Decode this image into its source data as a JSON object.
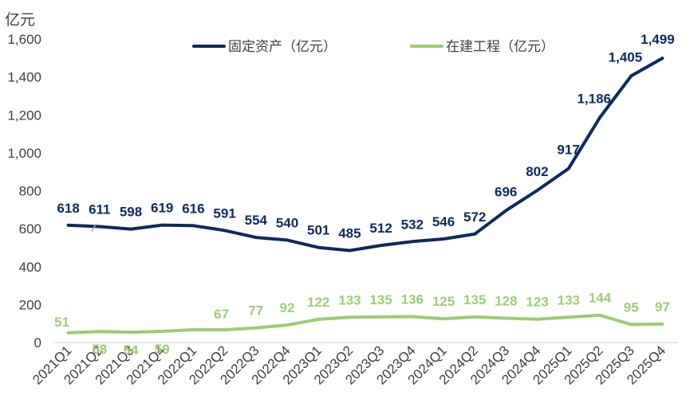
{
  "chart_data": {
    "type": "line",
    "unit_label": "亿元",
    "categories": [
      "2021Q1",
      "2021Q2",
      "2021Q3",
      "2021Q4",
      "2022Q1",
      "2022Q2",
      "2022Q3",
      "2022Q4",
      "2023Q1",
      "2023Q2",
      "2023Q3",
      "2023Q4",
      "2024Q1",
      "2024Q2",
      "2024Q3",
      "2024Q4",
      "2025Q1",
      "2025Q2",
      "2025Q3",
      "2025Q4"
    ],
    "y_ticks": [
      "0",
      "200",
      "400",
      "600",
      "800",
      "1,000",
      "1,200",
      "1,400",
      "1,600"
    ],
    "ylim": [
      0,
      1600
    ],
    "grid": false,
    "legend_position": "top",
    "series": [
      {
        "name": "固定资产（亿元）",
        "color": "#0e2a5c",
        "values": [
          618,
          611,
          598,
          619,
          616,
          591,
          554,
          540,
          501,
          485,
          512,
          532,
          546,
          572,
          696,
          802,
          917,
          1186,
          1405,
          1499
        ],
        "labels": [
          "618",
          "611",
          "598",
          "619",
          "616",
          "591",
          "554",
          "540",
          "501",
          "485",
          "512",
          "532",
          "546",
          "572",
          "696",
          "802",
          "917",
          "1,186",
          "1,405",
          "1,499"
        ]
      },
      {
        "name": "在建工程（亿元）",
        "color": "#9ccc74",
        "values": [
          51,
          58,
          54,
          59,
          67,
          67,
          77,
          92,
          122,
          133,
          135,
          136,
          125,
          135,
          128,
          123,
          133,
          144,
          95,
          97
        ],
        "labels": [
          "51",
          "58",
          "54",
          "59",
          "",
          "67",
          "77",
          "92",
          "122",
          "133",
          "135",
          "136",
          "125",
          "135",
          "128",
          "123",
          "133",
          "144",
          "95",
          "97"
        ]
      }
    ]
  }
}
